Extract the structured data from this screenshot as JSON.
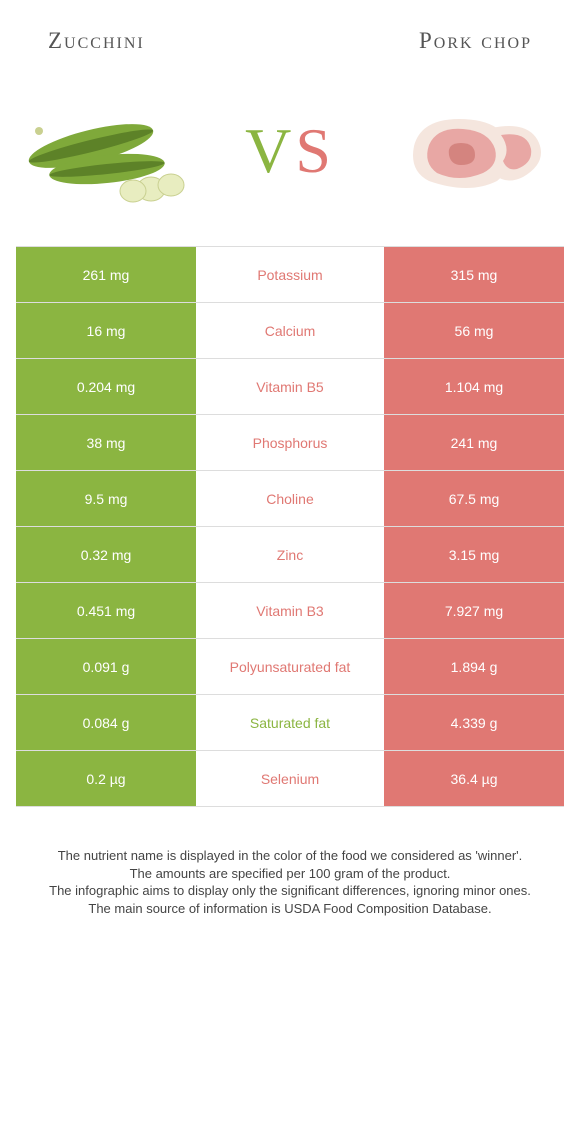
{
  "header": {
    "left_title": "Zucchini",
    "right_title": "Pork chop"
  },
  "vs": {
    "text_v": "V",
    "text_s": "S",
    "left_color": "#8bb541",
    "right_color": "#e07873"
  },
  "colors": {
    "left_cell": "#8bb541",
    "right_cell": "#e07873",
    "row_border": "#dddddd",
    "background": "#ffffff"
  },
  "rows": [
    {
      "left": "261 mg",
      "label": "Potassium",
      "right": "315 mg",
      "winner": "right"
    },
    {
      "left": "16 mg",
      "label": "Calcium",
      "right": "56 mg",
      "winner": "right"
    },
    {
      "left": "0.204 mg",
      "label": "Vitamin B5",
      "right": "1.104 mg",
      "winner": "right"
    },
    {
      "left": "38 mg",
      "label": "Phosphorus",
      "right": "241 mg",
      "winner": "right"
    },
    {
      "left": "9.5 mg",
      "label": "Choline",
      "right": "67.5 mg",
      "winner": "right"
    },
    {
      "left": "0.32 mg",
      "label": "Zinc",
      "right": "3.15 mg",
      "winner": "right"
    },
    {
      "left": "0.451 mg",
      "label": "Vitamin B3",
      "right": "7.927 mg",
      "winner": "right"
    },
    {
      "left": "0.091 g",
      "label": "Polyunsaturated fat",
      "right": "1.894 g",
      "winner": "right"
    },
    {
      "left": "0.084 g",
      "label": "Saturated fat",
      "right": "4.339 g",
      "winner": "left"
    },
    {
      "left": "0.2 µg",
      "label": "Selenium",
      "right": "36.4 µg",
      "winner": "right"
    }
  ],
  "footnotes": [
    "The nutrient name is displayed in the color of the food we considered as 'winner'.",
    "The amounts are specified per 100 gram of the product.",
    "The infographic aims to display only the significant differences, ignoring minor ones.",
    "The main source of information is USDA Food Composition Database."
  ]
}
